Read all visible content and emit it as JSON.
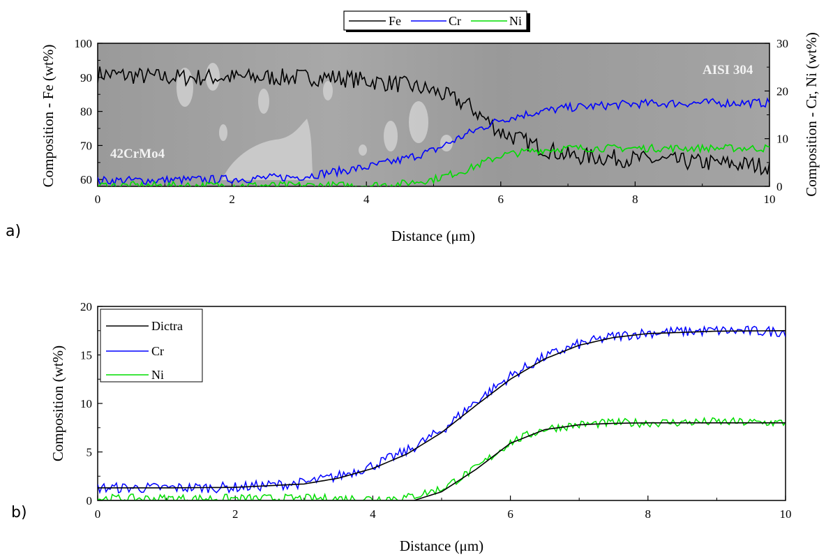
{
  "colors": {
    "fe": "#000000",
    "cr": "#0000ff",
    "ni": "#00dd00",
    "dictra": "#000000"
  },
  "panel_labels": [
    "a)",
    "b)"
  ],
  "chart_data": [
    {
      "type": "line",
      "background": "SEM micrograph",
      "annotations": [
        "AISI 304",
        "42CrMo4"
      ],
      "xlabel": "Distance (μm)",
      "ylabel": "Composition - Fe (wt%)",
      "y2label": "Composition - Cr, Ni (wt%)",
      "xlim": [
        0,
        10
      ],
      "ylim": [
        58,
        100
      ],
      "y2lim": [
        0,
        30
      ],
      "xticks": [
        "0",
        "2",
        "4",
        "6",
        "8",
        "10"
      ],
      "yticks": [
        "60",
        "70",
        "80",
        "90",
        "100"
      ],
      "y2ticks": [
        "0",
        "10",
        "20",
        "30"
      ],
      "legend_position": "top-center",
      "series": [
        {
          "name": "Fe",
          "axis": "left",
          "color": "#000000",
          "x": [
            0,
            1,
            2,
            3,
            3.5,
            4,
            4.5,
            5,
            5.5,
            6,
            6.5,
            7,
            8,
            9,
            10
          ],
          "y": [
            91,
            90,
            90,
            90,
            90,
            89,
            88,
            86,
            82,
            74,
            70,
            67,
            66,
            65,
            64
          ]
        },
        {
          "name": "Cr",
          "axis": "right",
          "color": "#0000ff",
          "x": [
            0,
            1,
            2,
            3,
            3.5,
            4,
            4.5,
            5,
            5.5,
            6,
            6.5,
            7,
            8,
            9,
            10
          ],
          "y": [
            1.2,
            1.3,
            1.5,
            2,
            3,
            4,
            5.5,
            7.5,
            11,
            14,
            15.5,
            16.5,
            17.3,
            17.5,
            17.5
          ]
        },
        {
          "name": "Ni",
          "axis": "right",
          "color": "#00dd00",
          "x": [
            0,
            1,
            2,
            3,
            4,
            4.5,
            5,
            5.5,
            6,
            6.5,
            7,
            8,
            9,
            10
          ],
          "y": [
            0.2,
            0.2,
            0.2,
            0.2,
            0.2,
            0.5,
            1.5,
            3.5,
            6.5,
            7.5,
            8,
            8,
            8,
            8
          ]
        }
      ]
    },
    {
      "type": "line",
      "xlabel": "Distance (μm)",
      "ylabel": "Composition (wt%)",
      "xlim": [
        0,
        10
      ],
      "ylim": [
        0,
        20
      ],
      "xticks": [
        "0",
        "2",
        "4",
        "6",
        "8",
        "10"
      ],
      "yticks": [
        "0",
        "5",
        "10",
        "15",
        "20"
      ],
      "legend_position": "top-left",
      "series": [
        {
          "name": "Dictra",
          "color": "#000000",
          "x": [
            0,
            1,
            2,
            3,
            3.5,
            4,
            4.5,
            5,
            5.5,
            6,
            6.5,
            7,
            7.5,
            8,
            9,
            10
          ],
          "y": [
            1.3,
            1.3,
            1.35,
            1.7,
            2.3,
            3.3,
            4.8,
            7,
            9.8,
            12.5,
            14.6,
            16,
            16.8,
            17.2,
            17.45,
            17.5
          ],
          "x2": [
            0,
            4.6,
            5,
            5.5,
            6,
            6.5,
            7,
            7.5,
            8,
            9,
            10
          ],
          "y2": [
            0,
            0,
            0.9,
            3.2,
            5.9,
            7.3,
            7.8,
            7.95,
            8,
            8,
            8
          ]
        },
        {
          "name": "Cr",
          "color": "#0000ff",
          "x": [
            0,
            1,
            2,
            3,
            3.5,
            4,
            4.5,
            5,
            5.5,
            6,
            6.5,
            7,
            7.5,
            8,
            9,
            10
          ],
          "y": [
            1.3,
            1.3,
            1.35,
            1.8,
            2.5,
            3.6,
            5.1,
            7.2,
            10.2,
            12.8,
            14.8,
            16.1,
            16.9,
            17.3,
            17.5,
            17.4
          ]
        },
        {
          "name": "Ni",
          "color": "#00dd00",
          "x": [
            0,
            1,
            2,
            3,
            4,
            4.5,
            5,
            5.5,
            6,
            6.5,
            7,
            7.5,
            8,
            9,
            10
          ],
          "y": [
            0.2,
            0.2,
            0.2,
            0.2,
            0.2,
            0.3,
            1.2,
            3.3,
            6,
            7.4,
            7.8,
            8,
            8,
            8.1,
            8
          ]
        }
      ]
    }
  ]
}
